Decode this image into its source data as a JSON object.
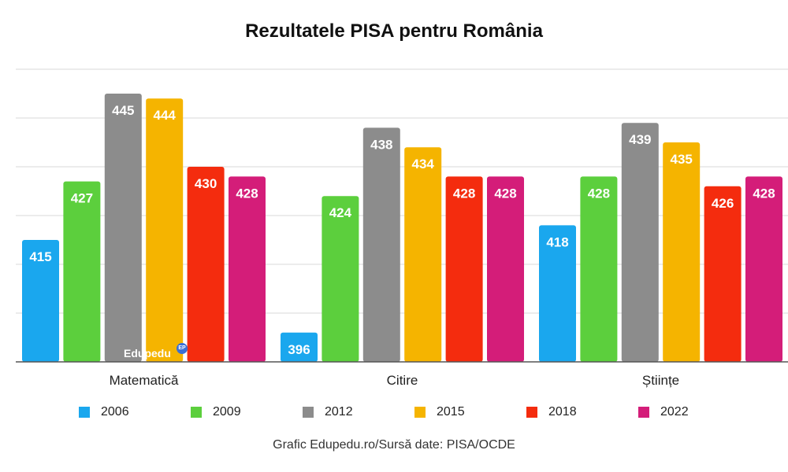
{
  "chart_data": {
    "type": "bar",
    "title": "Rezultatele PISA pentru România",
    "categories": [
      "Matematică",
      "Citire",
      "Științe"
    ],
    "series": [
      {
        "name": "2006",
        "color": "#1aa7ee",
        "values": [
          415,
          396,
          418
        ]
      },
      {
        "name": "2009",
        "color": "#5ccf3d",
        "values": [
          427,
          424,
          428
        ]
      },
      {
        "name": "2012",
        "color": "#8c8c8c",
        "values": [
          445,
          438,
          439
        ]
      },
      {
        "name": "2015",
        "color": "#f5b400",
        "values": [
          444,
          434,
          435
        ]
      },
      {
        "name": "2018",
        "color": "#f42c0e",
        "values": [
          430,
          428,
          426
        ]
      },
      {
        "name": "2022",
        "color": "#d41d79",
        "values": [
          428,
          428,
          428
        ]
      }
    ],
    "ylim": [
      390,
      450
    ],
    "grid": true,
    "legend_position": "bottom",
    "source_note": "Grafic Edupedu.ro/Sursă date: PISA/OCDE"
  },
  "watermark": {
    "text": "Edupedu",
    "badge": "EP"
  }
}
